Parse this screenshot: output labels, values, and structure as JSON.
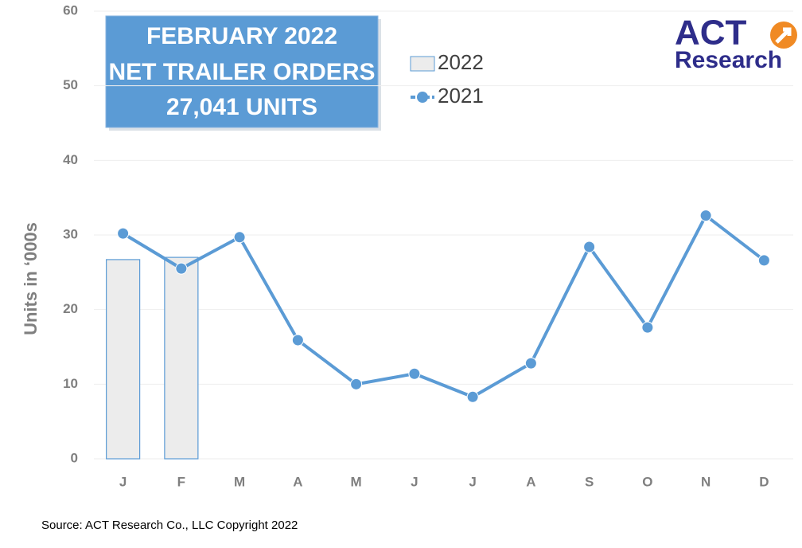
{
  "chart_data": {
    "type": "combo",
    "title_lines": [
      "FEBRUARY 2022",
      "NET TRAILER ORDERS",
      "27,041  UNITS"
    ],
    "logo": [
      "ACT",
      "Research"
    ],
    "y_label": "Units in ‘000s",
    "source": "Source: ACT Research Co., LLC  Copyright 2022",
    "categories": [
      "J",
      "F",
      "M",
      "A",
      "M",
      "J",
      "J",
      "A",
      "S",
      "O",
      "N",
      "D"
    ],
    "series": [
      {
        "name": "2022",
        "type": "bar",
        "color": "#ececec",
        "edge": "#5b9bd5",
        "values": [
          26.7,
          27.0,
          null,
          null,
          null,
          null,
          null,
          null,
          null,
          null,
          null,
          null
        ]
      },
      {
        "name": "2021",
        "type": "line",
        "color": "#5b9bd5",
        "values": [
          30.2,
          25.5,
          29.7,
          15.9,
          10.0,
          11.4,
          8.3,
          12.8,
          28.4,
          17.6,
          32.6,
          26.6
        ]
      }
    ],
    "ylim": [
      0,
      60
    ],
    "yticks": [
      0,
      10,
      20,
      30,
      40,
      50,
      60
    ],
    "grid": true
  }
}
